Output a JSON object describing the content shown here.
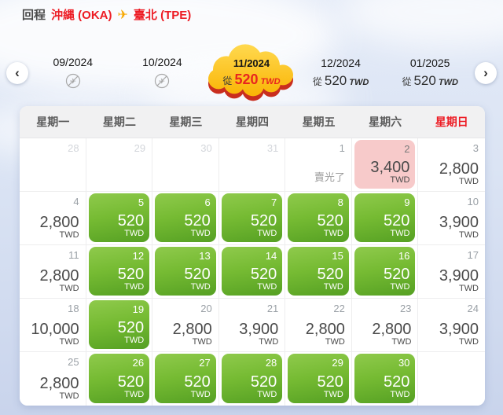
{
  "header": {
    "trip_label": "回程",
    "origin": "沖縄 (OKA)",
    "destination": "臺北 (TPE)"
  },
  "icons": {
    "plane": "✈",
    "prev": "‹",
    "next": "›"
  },
  "month_nav": {
    "from_label": "從",
    "currency": "TWD",
    "months": [
      {
        "label": "09/2024",
        "state": "no-flight"
      },
      {
        "label": "10/2024",
        "state": "no-flight"
      },
      {
        "label": "11/2024",
        "state": "selected",
        "price": "520"
      },
      {
        "label": "12/2024",
        "state": "price",
        "price": "520"
      },
      {
        "label": "01/2025",
        "state": "price",
        "price": "520"
      }
    ]
  },
  "calendar": {
    "weekdays": [
      {
        "label": "星期一",
        "highlight": false
      },
      {
        "label": "星期二",
        "highlight": false
      },
      {
        "label": "星期三",
        "highlight": false
      },
      {
        "label": "星期四",
        "highlight": false
      },
      {
        "label": "星期五",
        "highlight": false
      },
      {
        "label": "星期六",
        "highlight": false
      },
      {
        "label": "星期日",
        "highlight": true
      }
    ],
    "sold_out_label": "賣光了",
    "currency": "TWD",
    "rows": [
      [
        {
          "date": "28",
          "type": "prev"
        },
        {
          "date": "29",
          "type": "prev"
        },
        {
          "date": "30",
          "type": "prev"
        },
        {
          "date": "31",
          "type": "prev"
        },
        {
          "date": "1",
          "type": "soldout"
        },
        {
          "date": "2",
          "type": "pink",
          "price": "3,400"
        },
        {
          "date": "3",
          "type": "normal",
          "price": "2,800"
        }
      ],
      [
        {
          "date": "4",
          "type": "normal",
          "price": "2,800"
        },
        {
          "date": "5",
          "type": "deal",
          "price": "520"
        },
        {
          "date": "6",
          "type": "deal",
          "price": "520"
        },
        {
          "date": "7",
          "type": "deal",
          "price": "520"
        },
        {
          "date": "8",
          "type": "deal",
          "price": "520"
        },
        {
          "date": "9",
          "type": "deal",
          "price": "520"
        },
        {
          "date": "10",
          "type": "normal",
          "price": "3,900"
        }
      ],
      [
        {
          "date": "11",
          "type": "normal",
          "price": "2,800"
        },
        {
          "date": "12",
          "type": "deal",
          "price": "520"
        },
        {
          "date": "13",
          "type": "deal",
          "price": "520"
        },
        {
          "date": "14",
          "type": "deal",
          "price": "520"
        },
        {
          "date": "15",
          "type": "deal",
          "price": "520"
        },
        {
          "date": "16",
          "type": "deal",
          "price": "520"
        },
        {
          "date": "17",
          "type": "normal",
          "price": "3,900"
        }
      ],
      [
        {
          "date": "18",
          "type": "normal",
          "price": "10,000"
        },
        {
          "date": "19",
          "type": "deal",
          "price": "520"
        },
        {
          "date": "20",
          "type": "normal",
          "price": "2,800"
        },
        {
          "date": "21",
          "type": "normal",
          "price": "3,900"
        },
        {
          "date": "22",
          "type": "normal",
          "price": "2,800"
        },
        {
          "date": "23",
          "type": "normal",
          "price": "2,800"
        },
        {
          "date": "24",
          "type": "normal",
          "price": "3,900"
        }
      ],
      [
        {
          "date": "25",
          "type": "normal",
          "price": "2,800"
        },
        {
          "date": "26",
          "type": "deal",
          "price": "520"
        },
        {
          "date": "27",
          "type": "deal",
          "price": "520"
        },
        {
          "date": "28",
          "type": "deal",
          "price": "520"
        },
        {
          "date": "29",
          "type": "deal",
          "price": "520"
        },
        {
          "date": "30",
          "type": "deal",
          "price": "520"
        },
        {
          "type": "empty"
        }
      ]
    ]
  },
  "colors": {
    "accent_red": "#ed1c24",
    "deal_green_top": "#8fca4c",
    "deal_green_bottom": "#55a023",
    "pink_cell": "#f7caca",
    "cloud_yellow_top": "#ffd84d",
    "cloud_yellow_bottom": "#f9b200",
    "cloud_shadow_red": "#c92e1e",
    "plane_orange": "#f7a800"
  }
}
